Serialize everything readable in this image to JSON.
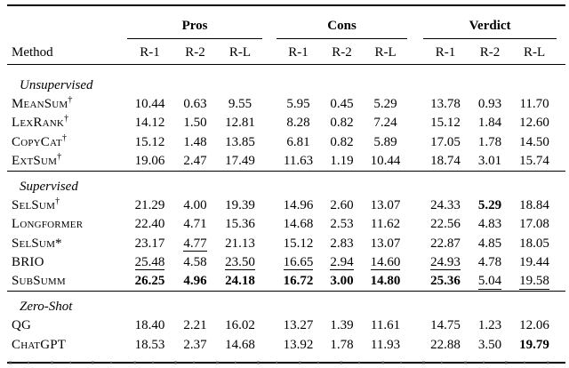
{
  "table": {
    "method_header": "Method",
    "groups": [
      {
        "label": "Pros"
      },
      {
        "label": "Cons"
      },
      {
        "label": "Verdict"
      }
    ],
    "subheaders": [
      "R-1",
      "R-2",
      "R-L"
    ],
    "sections": [
      {
        "label": "Unsupervised",
        "rows": [
          {
            "method": "MeanSum",
            "sup": "†",
            "values": [
              "10.44",
              "0.63",
              "9.55",
              "5.95",
              "0.45",
              "5.29",
              "13.78",
              "0.93",
              "11.70"
            ],
            "styles": [
              "",
              "",
              "",
              "",
              "",
              "",
              "",
              "",
              ""
            ]
          },
          {
            "method": "LexRank",
            "sup": "†",
            "values": [
              "14.12",
              "1.50",
              "12.81",
              "8.28",
              "0.82",
              "7.24",
              "15.12",
              "1.84",
              "12.60"
            ],
            "styles": [
              "",
              "",
              "",
              "",
              "",
              "",
              "",
              "",
              ""
            ]
          },
          {
            "method": "CopyCat",
            "sup": "†",
            "values": [
              "15.12",
              "1.48",
              "13.85",
              "6.81",
              "0.82",
              "5.89",
              "17.05",
              "1.78",
              "14.50"
            ],
            "styles": [
              "",
              "",
              "",
              "",
              "",
              "",
              "",
              "",
              ""
            ]
          },
          {
            "method": "ExtSum",
            "sup": "†",
            "values": [
              "19.06",
              "2.47",
              "17.49",
              "11.63",
              "1.19",
              "10.44",
              "18.74",
              "3.01",
              "15.74"
            ],
            "styles": [
              "",
              "",
              "",
              "",
              "",
              "",
              "",
              "",
              ""
            ]
          }
        ]
      },
      {
        "label": "Supervised",
        "rows": [
          {
            "method": "SelSum",
            "sup": "†",
            "values": [
              "21.29",
              "4.00",
              "19.39",
              "14.96",
              "2.60",
              "13.07",
              "24.33",
              "5.29",
              "18.84"
            ],
            "styles": [
              "",
              "",
              "",
              "",
              "",
              "",
              "",
              "b",
              ""
            ]
          },
          {
            "method": "Longformer",
            "sup": "",
            "values": [
              "22.40",
              "4.71",
              "15.36",
              "14.68",
              "2.53",
              "11.62",
              "22.56",
              "4.83",
              "17.08"
            ],
            "styles": [
              "",
              "",
              "",
              "",
              "",
              "",
              "",
              "",
              ""
            ]
          },
          {
            "method": "SelSum*",
            "sup": "",
            "values": [
              "23.17",
              "4.77",
              "21.13",
              "15.12",
              "2.83",
              "13.07",
              "22.87",
              "4.85",
              "18.05"
            ],
            "styles": [
              "",
              "u",
              "",
              "",
              "",
              "",
              "",
              "",
              ""
            ]
          },
          {
            "method": "BRIO",
            "sup": "",
            "values": [
              "25.48",
              "4.58",
              "23.50",
              "16.65",
              "2.94",
              "14.60",
              "24.93",
              "4.78",
              "19.44"
            ],
            "styles": [
              "u",
              "",
              "u",
              "u",
              "u",
              "u",
              "u",
              "",
              ""
            ]
          },
          {
            "method": "SubSumm",
            "sup": "",
            "values": [
              "26.25",
              "4.96",
              "24.18",
              "16.72",
              "3.00",
              "14.80",
              "25.36",
              "5.04",
              "19.58"
            ],
            "styles": [
              "b",
              "b",
              "b",
              "b",
              "b",
              "b",
              "b",
              "u",
              "u"
            ]
          }
        ]
      },
      {
        "label": "Zero-Shot",
        "rows": [
          {
            "method": "QG",
            "sup": "",
            "values": [
              "18.40",
              "2.21",
              "16.02",
              "13.27",
              "1.39",
              "11.61",
              "14.75",
              "1.23",
              "12.06"
            ],
            "styles": [
              "",
              "",
              "",
              "",
              "",
              "",
              "",
              "",
              ""
            ]
          },
          {
            "method": "ChatGPT",
            "sup": "",
            "values": [
              "18.53",
              "2.37",
              "14.68",
              "13.92",
              "1.78",
              "11.93",
              "22.88",
              "3.50",
              "19.79"
            ],
            "styles": [
              "",
              "",
              "",
              "",
              "",
              "",
              "",
              "",
              "b"
            ]
          }
        ]
      }
    ]
  },
  "colors": {
    "text": "#000000",
    "rule": "#000000",
    "background": "#ffffff"
  }
}
